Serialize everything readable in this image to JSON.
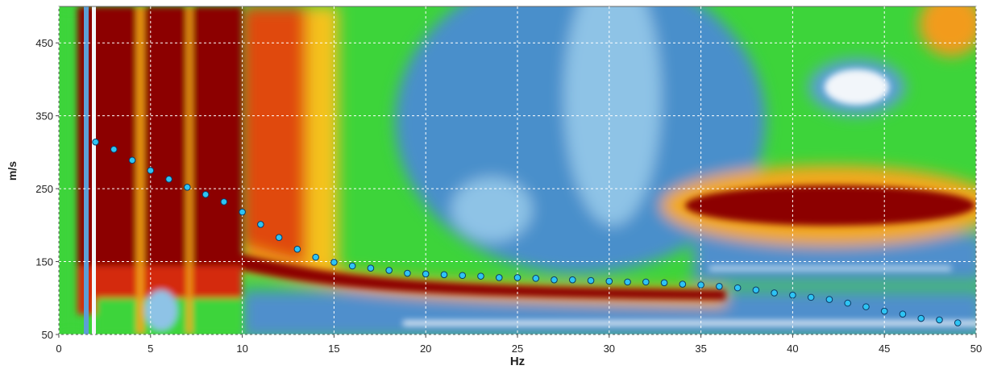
{
  "chart_data": {
    "type": "scatter",
    "x_label": "Hz",
    "y_label": "m/s",
    "x": [
      2,
      3,
      4,
      5,
      6,
      7,
      8,
      9,
      10,
      11,
      12,
      13,
      14,
      15,
      16,
      17,
      18,
      19,
      20,
      21,
      22,
      23,
      24,
      25,
      26,
      27,
      28,
      29,
      30,
      31,
      32,
      33,
      34,
      35,
      36,
      37,
      38,
      39,
      40,
      41,
      42,
      43,
      44,
      45,
      46,
      47,
      48,
      49
    ],
    "values": [
      314,
      304,
      289,
      275,
      263,
      252,
      242,
      232,
      218,
      201,
      183,
      167,
      156,
      149,
      144,
      141,
      138,
      134,
      133,
      132,
      131,
      130,
      128,
      128,
      127,
      125,
      125,
      124,
      123,
      122,
      122,
      121,
      119,
      118,
      116,
      114,
      111,
      107,
      104,
      101,
      98,
      93,
      88,
      82,
      78,
      72,
      70,
      66
    ],
    "color": "#2ec4f4",
    "xlim": [
      0,
      50
    ],
    "xticks": [
      0,
      5,
      10,
      15,
      20,
      25,
      30,
      35,
      40,
      45,
      50
    ],
    "ylim": [
      50,
      500
    ],
    "yticks": [
      50,
      150,
      250,
      350,
      450
    ],
    "grid": true
  }
}
